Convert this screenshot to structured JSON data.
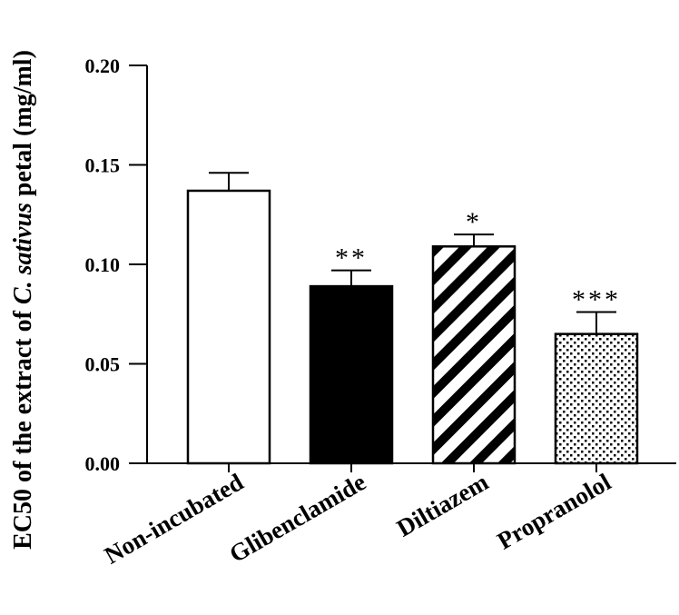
{
  "chart_data": {
    "type": "bar",
    "title": "",
    "xlabel": "",
    "ylabel": {
      "prefix": "EC50 of the extract of ",
      "italic": "C. sativus",
      "suffix": " petal (mg/ml)"
    },
    "ylim": [
      0,
      0.2
    ],
    "yticks": [
      "0.00",
      "0.05",
      "0.10",
      "0.15",
      "0.20"
    ],
    "categories": [
      "Non-incubated",
      "Glibenclamide",
      "Diltiazem",
      "Propranolol"
    ],
    "values": [
      0.137,
      0.089,
      0.109,
      0.065
    ],
    "errors": [
      0.009,
      0.008,
      0.006,
      0.011
    ],
    "significance": [
      "",
      "**",
      "*",
      "***"
    ],
    "fills": [
      "white",
      "black",
      "hatched",
      "dotted"
    ]
  }
}
